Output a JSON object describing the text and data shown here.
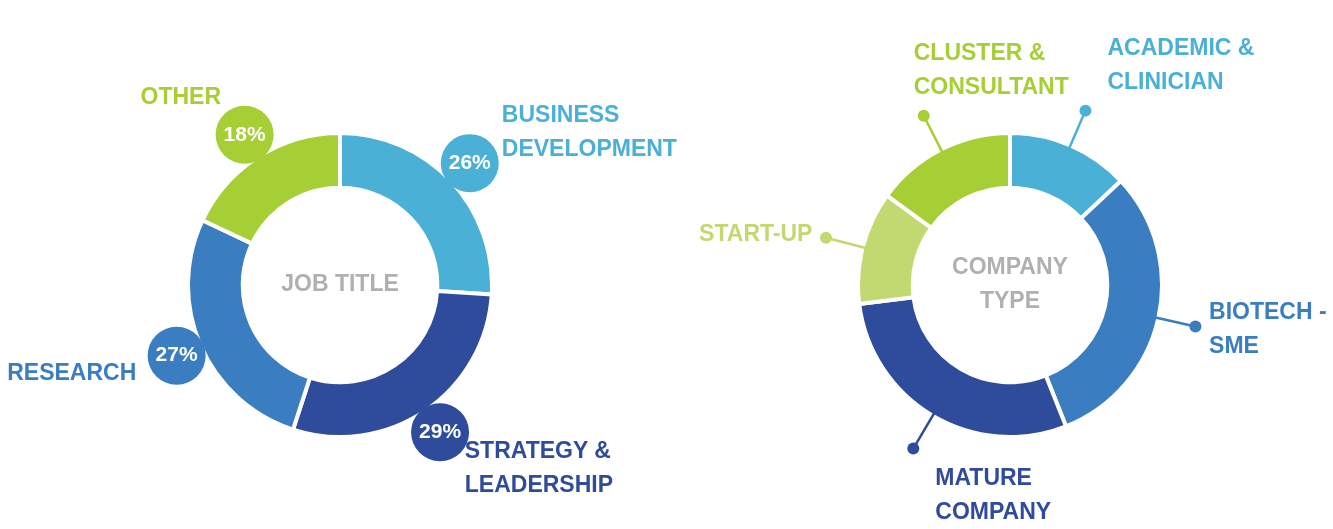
{
  "chart_data": [
    {
      "type": "donut",
      "title": "JOB TITLE",
      "categories": [
        "BUSINESS DEVELOPMENT",
        "STRATEGY & LEADERSHIP",
        "RESEARCH",
        "OTHER"
      ],
      "values": [
        26,
        29,
        27,
        18
      ],
      "value_labels": [
        "26%",
        "29%",
        "27%",
        "18%"
      ],
      "colors": [
        "#4bb0d6",
        "#2f4b9b",
        "#3a7dc1",
        "#a6cf36"
      ]
    },
    {
      "type": "donut",
      "title": "COMPANY TYPE",
      "categories": [
        "ACADEMIC & CLINICIAN",
        "BIOTECH - SME",
        "MATURE COMPANY",
        "START-UP",
        "CLUSTER & CONSULTANT"
      ],
      "values": [
        13,
        31,
        29,
        12,
        15
      ],
      "colors": [
        "#4bb0d6",
        "#3a7dc1",
        "#2f4b9b",
        "#c2d870",
        "#a6cf36"
      ]
    }
  ]
}
